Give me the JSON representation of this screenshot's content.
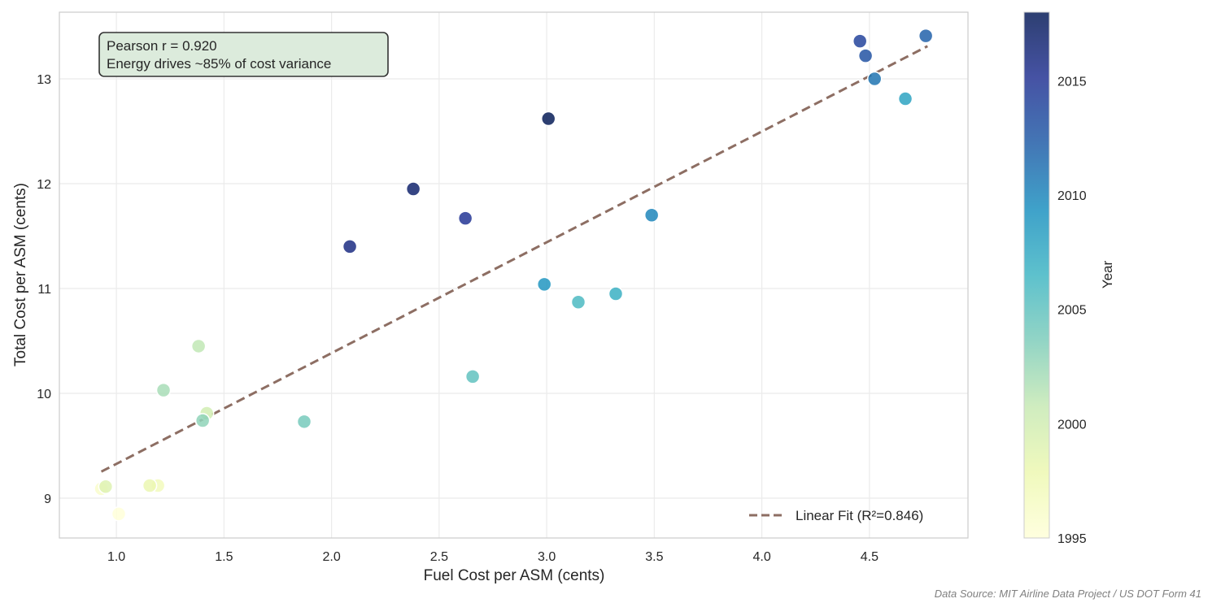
{
  "chart_data": {
    "type": "scatter",
    "xlabel": "Fuel Cost per ASM (cents)",
    "ylabel": "Total Cost per ASM (cents)",
    "xlim": [
      0.735,
      4.958
    ],
    "ylim": [
      8.62,
      13.636
    ],
    "xticks": [
      1.0,
      1.5,
      2.0,
      2.5,
      3.0,
      3.5,
      4.0,
      4.5
    ],
    "yticks": [
      9,
      10,
      11,
      12,
      13
    ],
    "grid": true,
    "colormap": "YlGnBu",
    "colorbar": {
      "label": "Year",
      "range": [
        1995,
        2018
      ],
      "ticks": [
        1995,
        2000,
        2005,
        2010,
        2015
      ]
    },
    "points": [
      {
        "year": 1995,
        "x": 1.011,
        "y": 8.85
      },
      {
        "year": 1996,
        "x": 0.93,
        "y": 9.09
      },
      {
        "year": 1997,
        "x": 1.193,
        "y": 9.12
      },
      {
        "year": 1998,
        "x": 1.155,
        "y": 9.12
      },
      {
        "year": 1999,
        "x": 0.95,
        "y": 9.11
      },
      {
        "year": 2000,
        "x": 1.42,
        "y": 9.81
      },
      {
        "year": 2001,
        "x": 1.382,
        "y": 10.45
      },
      {
        "year": 2002,
        "x": 1.219,
        "y": 10.03
      },
      {
        "year": 2003,
        "x": 1.401,
        "y": 9.74
      },
      {
        "year": 2004,
        "x": 1.873,
        "y": 9.73
      },
      {
        "year": 2005,
        "x": 2.656,
        "y": 10.16
      },
      {
        "year": 2006,
        "x": 3.147,
        "y": 10.87
      },
      {
        "year": 2007,
        "x": 3.321,
        "y": 10.95
      },
      {
        "year": 2008,
        "x": 4.667,
        "y": 12.81
      },
      {
        "year": 2009,
        "x": 2.989,
        "y": 11.04
      },
      {
        "year": 2010,
        "x": 3.488,
        "y": 11.7
      },
      {
        "year": 2011,
        "x": 4.524,
        "y": 13.0
      },
      {
        "year": 2012,
        "x": 4.762,
        "y": 13.41
      },
      {
        "year": 2013,
        "x": 4.482,
        "y": 13.22
      },
      {
        "year": 2014,
        "x": 4.456,
        "y": 13.36
      },
      {
        "year": 2015,
        "x": 2.622,
        "y": 11.67
      },
      {
        "year": 2016,
        "x": 2.085,
        "y": 11.4
      },
      {
        "year": 2017,
        "x": 2.38,
        "y": 11.95
      },
      {
        "year": 2018,
        "x": 3.008,
        "y": 12.62
      }
    ],
    "fit": {
      "name": "Linear Fit (R²=0.846)",
      "slope": 1.057,
      "intercept": 8.27,
      "x_range": [
        0.93,
        4.77
      ],
      "color": "#8d6e63"
    },
    "annotation": {
      "line1": "Pearson r = 0.920",
      "line2": "Energy drives ~85% of cost variance"
    },
    "legend_position": "bottom-right",
    "source": "Data Source: MIT Airline Data Project / US DOT Form 41"
  }
}
